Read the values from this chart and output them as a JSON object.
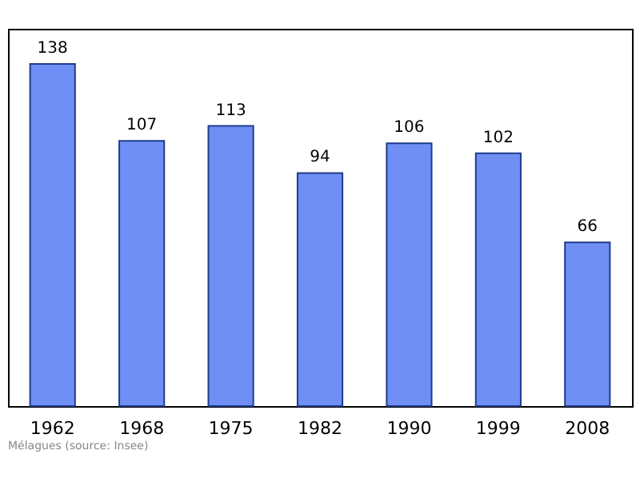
{
  "chart_data": {
    "type": "bar",
    "categories": [
      "1962",
      "1968",
      "1975",
      "1982",
      "1990",
      "1999",
      "2008"
    ],
    "values": [
      138,
      107,
      113,
      94,
      106,
      102,
      66
    ],
    "color": "#6f8ff5",
    "data_labels": true,
    "annotations": [
      "Mélagues    (source: Insee)"
    ]
  }
}
